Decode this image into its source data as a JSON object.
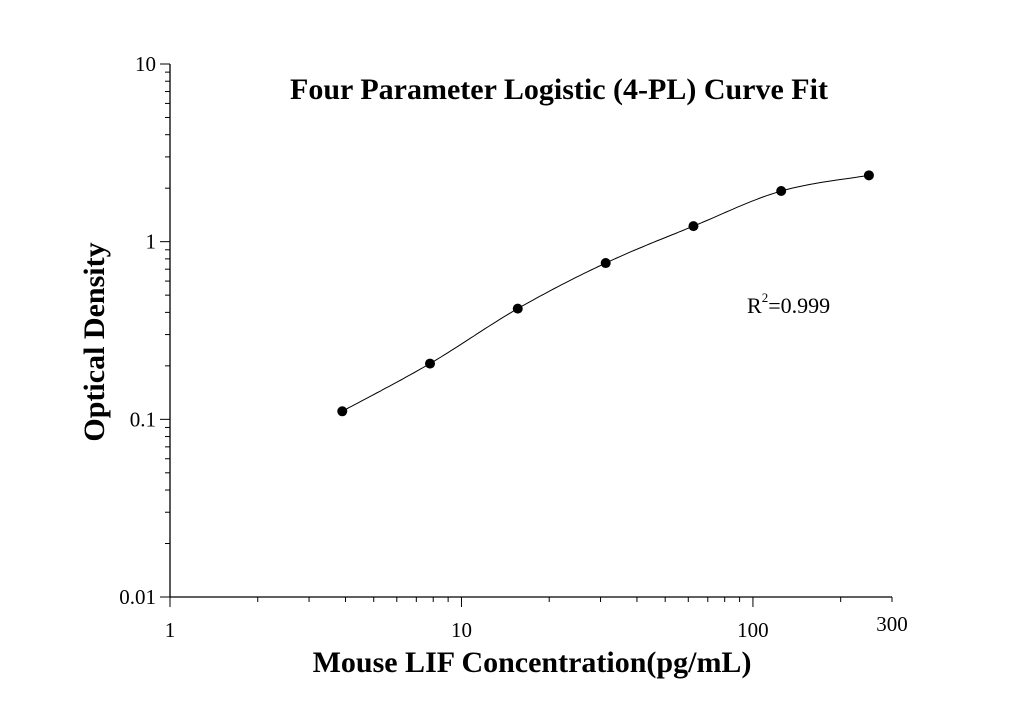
{
  "chart_data": {
    "type": "scatter",
    "title": "Four Parameter Logistic (4-PL) Curve Fit",
    "xlabel": "Mouse LIF Concentration(pg/mL)",
    "ylabel": "Optical Density",
    "x_scale": "log",
    "y_scale": "log",
    "xlim": [
      1,
      300
    ],
    "ylim": [
      0.01,
      10
    ],
    "x_ticks": [
      {
        "value": 1,
        "label": "1"
      },
      {
        "value": 10,
        "label": "10"
      },
      {
        "value": 100,
        "label": "100"
      },
      {
        "value": 300,
        "label": "300"
      }
    ],
    "y_ticks": [
      {
        "value": 0.01,
        "label": "0.01"
      },
      {
        "value": 0.1,
        "label": "0.1"
      },
      {
        "value": 1,
        "label": "1"
      },
      {
        "value": 10,
        "label": "10"
      }
    ],
    "grid": false,
    "legend": "none",
    "points": [
      {
        "x": 3.9,
        "y": 0.111
      },
      {
        "x": 7.8,
        "y": 0.206
      },
      {
        "x": 15.6,
        "y": 0.42
      },
      {
        "x": 31.25,
        "y": 0.758
      },
      {
        "x": 62.5,
        "y": 1.223
      },
      {
        "x": 125,
        "y": 1.928
      },
      {
        "x": 250,
        "y": 2.362
      }
    ],
    "annotation": {
      "label": "R",
      "superscript": "2",
      "value": "=0.999"
    },
    "colors": {
      "marker": "#000000",
      "line": "#000000",
      "axis": "#000000"
    }
  }
}
